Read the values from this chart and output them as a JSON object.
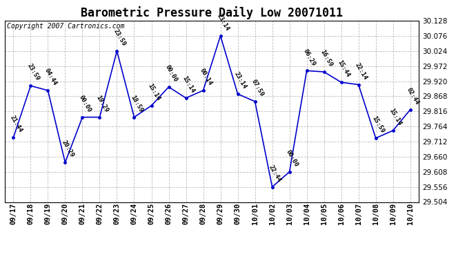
{
  "title": "Barometric Pressure Daily Low 20071011",
  "copyright": "Copyright 2007 Cartronics.com",
  "x_labels": [
    "09/17",
    "09/18",
    "09/19",
    "09/20",
    "09/21",
    "09/22",
    "09/23",
    "09/24",
    "09/25",
    "09/26",
    "09/27",
    "09/28",
    "09/29",
    "09/30",
    "10/01",
    "10/02",
    "10/03",
    "10/04",
    "10/05",
    "10/06",
    "10/07",
    "10/08",
    "10/09",
    "10/10"
  ],
  "y_values": [
    29.726,
    29.904,
    29.888,
    29.64,
    29.796,
    29.796,
    30.024,
    29.796,
    29.836,
    29.9,
    29.862,
    29.888,
    30.076,
    29.876,
    29.85,
    29.556,
    29.608,
    29.956,
    29.952,
    29.916,
    29.908,
    29.724,
    29.75,
    29.822
  ],
  "time_labels": [
    "21:44",
    "23:59",
    "04:44",
    "20:29",
    "00:00",
    "19:29",
    "23:59",
    "18:59",
    "15:14",
    "00:00",
    "15:14",
    "00:14",
    "23:14",
    "23:14",
    "07:59",
    "22:44",
    "00:00",
    "06:29",
    "16:59",
    "15:44",
    "22:14",
    "15:59",
    "15:14",
    "02:44"
  ],
  "ylim_min": 29.504,
  "ylim_max": 30.128,
  "ytick_step": 0.052,
  "line_color": "#0000CC",
  "marker_color": "#0000CC",
  "bg_color": "#FFFFFF",
  "grid_color": "#AAAAAA",
  "title_fontsize": 12,
  "tick_fontsize": 7.5,
  "annot_fontsize": 6.5,
  "copyright_fontsize": 7
}
